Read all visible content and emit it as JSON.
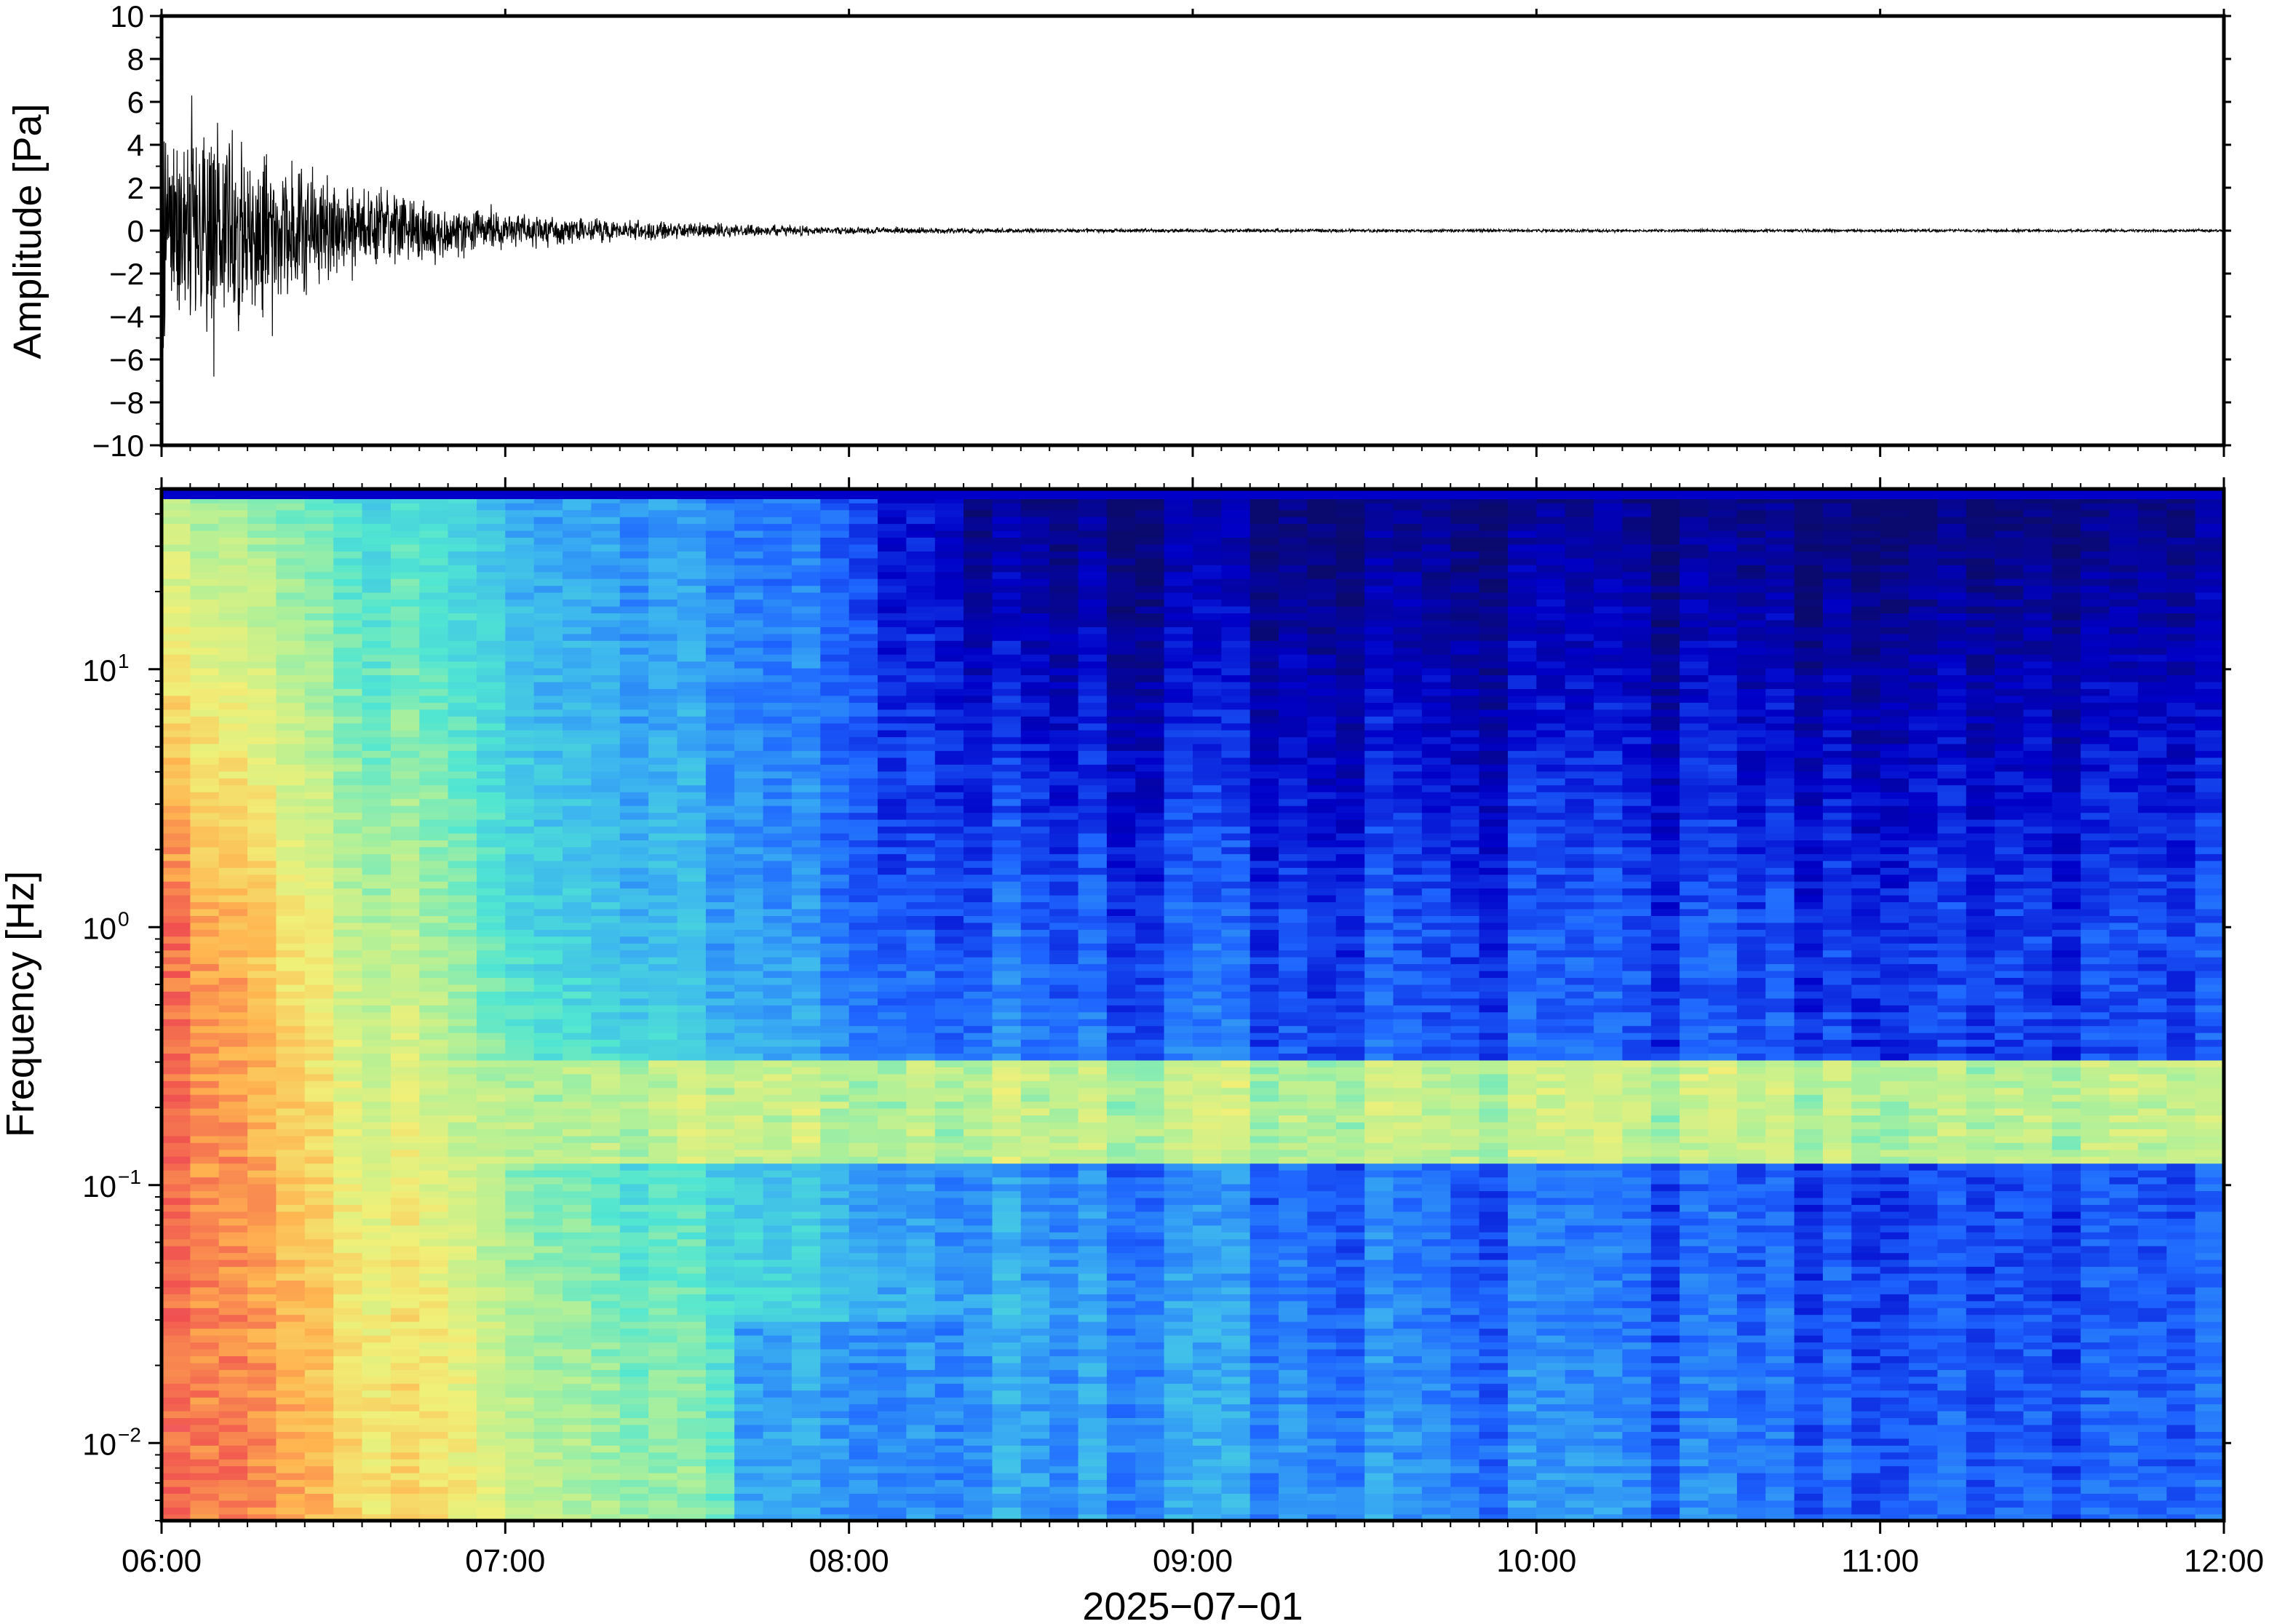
{
  "chart_data": [
    {
      "type": "line",
      "title": "",
      "ylabel": "Amplitude [Pa]",
      "ylim": [
        -10,
        10
      ],
      "yticks": [
        10,
        8,
        6,
        4,
        2,
        0,
        -2,
        -4,
        -6,
        -8,
        -10
      ],
      "ytick_labels": [
        "10",
        "8",
        "6",
        "4",
        "2",
        "0",
        "−2",
        "−4",
        "−6",
        "−8",
        "−10"
      ],
      "xlim": [
        "06:00",
        "12:00"
      ],
      "series": [
        {
          "color": "#000000",
          "envelope_hours_after_0600": [
            0,
            0.25,
            0.5,
            0.75,
            1.0,
            1.25,
            1.5,
            1.75,
            2.0,
            2.5,
            3.0,
            4.0,
            5.0,
            6.0
          ],
          "envelope_amplitude_pa": [
            6.5,
            5.0,
            3.0,
            1.8,
            1.0,
            0.7,
            0.45,
            0.3,
            0.2,
            0.12,
            0.1,
            0.08,
            0.08,
            0.08
          ],
          "peak_max_pa": 6.3,
          "peak_min_pa": -6.8
        }
      ],
      "grid": false
    },
    {
      "type": "heatmap",
      "title": "",
      "ylabel": "Frequency [Hz]",
      "yscale": "log",
      "ylim": [
        0.005,
        50
      ],
      "yticks": [
        0.01,
        0.1,
        1,
        10
      ],
      "ytick_labels": [
        {
          "base": "10",
          "exp": "−2"
        },
        {
          "base": "10",
          "exp": "−1"
        },
        {
          "base": "10",
          "exp": "0"
        },
        {
          "base": "10",
          "exp": "1"
        }
      ],
      "xlabel": "2025−07−01",
      "xlim": [
        "06:00",
        "12:00"
      ],
      "xtick_labels": [
        "06:00",
        "07:00",
        "08:00",
        "09:00",
        "10:00",
        "11:00",
        "12:00"
      ],
      "colormap": "jet-like",
      "colormap_colors": [
        "#0a0a6e",
        "#0000c8",
        "#1e64ff",
        "#3cb4f0",
        "#50e6d2",
        "#b4f096",
        "#f0f078",
        "#ffb450",
        "#f05050",
        "#ffc8c8"
      ],
      "secondary_microseism_band_hz": [
        0.12,
        0.3
      ],
      "grid": false
    }
  ]
}
